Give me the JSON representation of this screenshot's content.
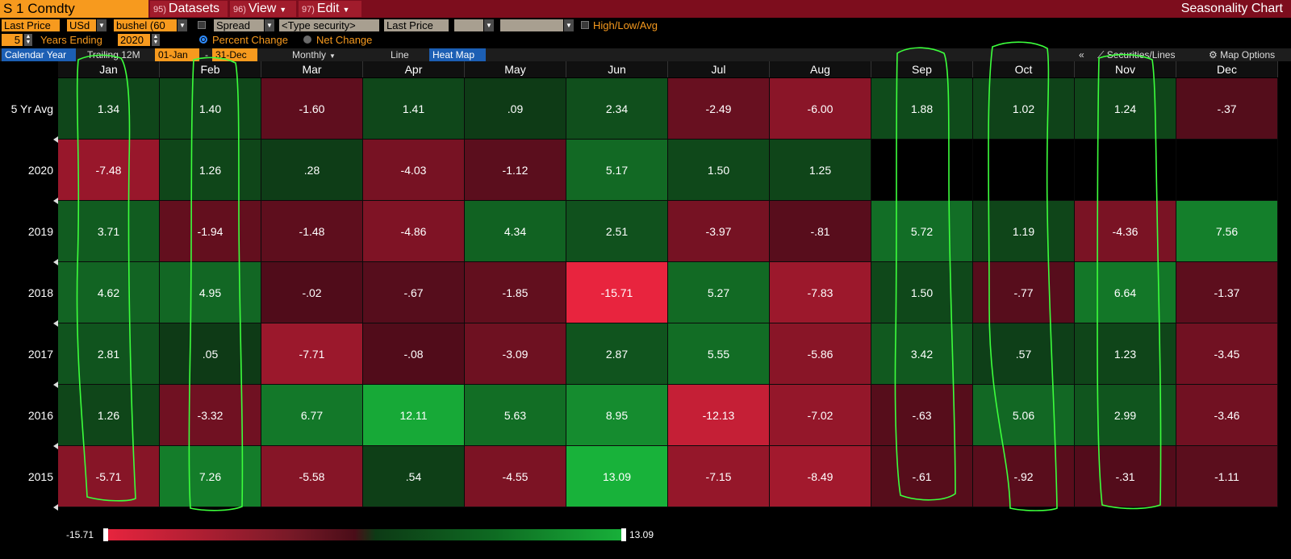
{
  "title_bar": {
    "ticker": "S 1 Comdty",
    "menus": [
      {
        "num": "95)",
        "label": "Datasets"
      },
      {
        "num": "96)",
        "label": "View"
      },
      {
        "num": "97)",
        "label": "Edit"
      }
    ],
    "window_title": "Seasonality Chart"
  },
  "settings": {
    "field": "Last Price",
    "currency": "USd",
    "unit": "bushel (60",
    "spread_label": "Spread",
    "security_placeholder": "<Type security>",
    "field2": "Last Price",
    "high_low_avg": "High/Low/Avg",
    "years": "5",
    "years_ending_label": "Years Ending",
    "year_end": "2020",
    "percent_change": "Percent Change",
    "net_change": "Net Change"
  },
  "tabs": {
    "calendar_year": "Calendar Year",
    "trailing": "Trailing 12M",
    "date_from": "01-Jan",
    "dash": "-",
    "date_to": "31-Dec",
    "monthly": "Monthly",
    "line": "Line",
    "heat_map": "Heat Map",
    "collapse": "«",
    "securities_lines": "Securities/Lines",
    "map_options": "Map Options"
  },
  "heatmap": {
    "months": [
      "Jan",
      "Feb",
      "Mar",
      "Apr",
      "May",
      "Jun",
      "Jul",
      "Aug",
      "Sep",
      "Oct",
      "Nov",
      "Dec"
    ],
    "rows": [
      {
        "label": "5 Yr Avg",
        "values": [
          "1.34",
          "1.40",
          "-1.60",
          "1.41",
          ".09",
          "2.34",
          "-2.49",
          "-6.00",
          "1.88",
          "1.02",
          "1.24",
          "-.37"
        ]
      },
      {
        "label": "2020",
        "values": [
          "-7.48",
          "1.26",
          ".28",
          "-4.03",
          "-1.12",
          "5.17",
          "1.50",
          "1.25",
          "",
          "",
          "",
          ""
        ]
      },
      {
        "label": "2019",
        "values": [
          "3.71",
          "-1.94",
          "-1.48",
          "-4.86",
          "4.34",
          "2.51",
          "-3.97",
          "-.81",
          "5.72",
          "1.19",
          "-4.36",
          "7.56"
        ]
      },
      {
        "label": "2018",
        "values": [
          "4.62",
          "4.95",
          "-.02",
          "-.67",
          "-1.85",
          "-15.71",
          "5.27",
          "-7.83",
          "1.50",
          "-.77",
          "6.64",
          "-1.37"
        ]
      },
      {
        "label": "2017",
        "values": [
          "2.81",
          ".05",
          "-7.71",
          "-.08",
          "-3.09",
          "2.87",
          "5.55",
          "-5.86",
          "3.42",
          ".57",
          "1.23",
          "-3.45"
        ]
      },
      {
        "label": "2016",
        "values": [
          "1.26",
          "-3.32",
          "6.77",
          "12.11",
          "5.63",
          "8.95",
          "-12.13",
          "-7.02",
          "-.63",
          "5.06",
          "2.99",
          "-3.46"
        ]
      },
      {
        "label": "2015",
        "values": [
          "-5.71",
          "7.26",
          "-5.58",
          ".54",
          "-4.55",
          "13.09",
          "-7.15",
          "-8.49",
          "-.61",
          "-.92",
          "-.31",
          "-1.11"
        ]
      }
    ]
  },
  "legend": {
    "min_label": "-15.71",
    "max_label": "13.09",
    "min": -15.71,
    "max": 13.09
  },
  "colors": {
    "accent_orange": "#f79a1e",
    "title_red": "#7d0d1d",
    "highlight_green": "#3cff3c"
  }
}
